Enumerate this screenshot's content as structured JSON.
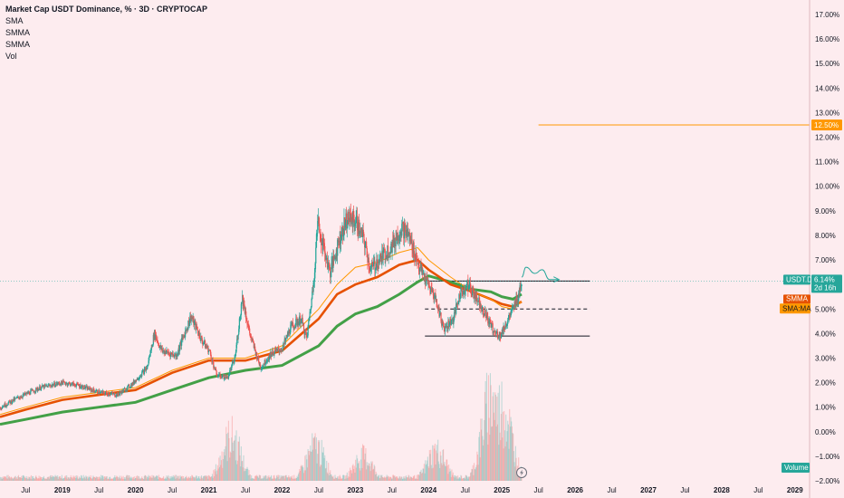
{
  "legend": {
    "title": "Market Cap USDT Dominance, % · 3D · CRYPTOCAP",
    "lines": [
      "SMA",
      "SMMA",
      "SMMA",
      "Vol"
    ]
  },
  "colors": {
    "background": "#fdecef",
    "up": "#26a69a",
    "down": "#ef5350",
    "smma_fast": "#e65100",
    "smma_slow": "#43a047",
    "sma": "#ff9800",
    "level": "#131722",
    "target": "#ff9800",
    "projection": "#26a69a"
  },
  "tags": {
    "target_price": "12.50%",
    "ticker": "USDT.D",
    "ticker_price": "6.14%",
    "ticker_timer": "2d 16h",
    "smma_tag": "SMMA",
    "sma_ma_tag": "SMA:MA",
    "volume_tag": "Volume",
    "lightning_icon": "lightning-icon"
  },
  "chart_data": {
    "type": "candlestick",
    "title": "Market Cap USDT Dominance, % · 3D · CRYPTOCAP",
    "y_axis": {
      "unit": "%",
      "range": [
        -2.0,
        17.0
      ],
      "ticks": [
        "17.00%",
        "16.00%",
        "15.00%",
        "14.00%",
        "13.00%",
        "12.00%",
        "11.00%",
        "10.00%",
        "9.00%",
        "8.00%",
        "7.00%",
        "6.00%",
        "5.00%",
        "4.00%",
        "3.00%",
        "2.00%",
        "1.00%",
        "0.00%",
        "−1.00%",
        "−2.00%"
      ],
      "tick_values": [
        17,
        16,
        15,
        14,
        13,
        12,
        11,
        10,
        9,
        8,
        7,
        6,
        5,
        4,
        3,
        2,
        1,
        0,
        -1,
        -2
      ]
    },
    "x_axis": {
      "range": [
        2018.15,
        2029.2
      ],
      "ticks": [
        "Jul",
        "2019",
        "Jul",
        "2020",
        "Jul",
        "2021",
        "Jul",
        "2022",
        "Jul",
        "2023",
        "Jul",
        "2024",
        "Jul",
        "2025",
        "Jul",
        "2026",
        "Jul",
        "2027",
        "Jul",
        "2028",
        "Jul",
        "2029"
      ],
      "tick_values": [
        2018.5,
        2019.0,
        2019.5,
        2020.0,
        2020.5,
        2021.0,
        2021.5,
        2022.0,
        2022.5,
        2023.0,
        2023.5,
        2024.0,
        2024.5,
        2025.0,
        2025.5,
        2026.0,
        2026.5,
        2027.0,
        2027.5,
        2028.0,
        2028.5,
        2029.0
      ]
    },
    "price_path": [
      [
        2018.15,
        1.0
      ],
      [
        2018.4,
        1.4
      ],
      [
        2018.7,
        1.8
      ],
      [
        2019.0,
        2.0
      ],
      [
        2019.2,
        1.9
      ],
      [
        2019.5,
        1.6
      ],
      [
        2019.75,
        1.5
      ],
      [
        2019.95,
        1.95
      ],
      [
        2020.15,
        2.6
      ],
      [
        2020.25,
        4.0
      ],
      [
        2020.35,
        3.3
      ],
      [
        2020.55,
        3.1
      ],
      [
        2020.75,
        4.7
      ],
      [
        2020.9,
        3.7
      ],
      [
        2021.0,
        3.3
      ],
      [
        2021.1,
        2.3
      ],
      [
        2021.25,
        2.2
      ],
      [
        2021.35,
        3.0
      ],
      [
        2021.45,
        5.5
      ],
      [
        2021.55,
        4.0
      ],
      [
        2021.7,
        2.6
      ],
      [
        2021.85,
        3.2
      ],
      [
        2022.0,
        3.4
      ],
      [
        2022.1,
        4.2
      ],
      [
        2022.25,
        4.6
      ],
      [
        2022.33,
        3.8
      ],
      [
        2022.42,
        6.0
      ],
      [
        2022.48,
        8.6
      ],
      [
        2022.55,
        7.6
      ],
      [
        2022.65,
        6.5
      ],
      [
        2022.78,
        7.9
      ],
      [
        2022.88,
        8.7
      ],
      [
        2023.0,
        8.6
      ],
      [
        2023.12,
        7.7
      ],
      [
        2023.2,
        6.6
      ],
      [
        2023.35,
        7.1
      ],
      [
        2023.5,
        7.6
      ],
      [
        2023.62,
        8.3
      ],
      [
        2023.72,
        8.0
      ],
      [
        2023.8,
        7.3
      ],
      [
        2023.88,
        6.6
      ],
      [
        2024.0,
        5.9
      ],
      [
        2024.08,
        5.5
      ],
      [
        2024.2,
        4.2
      ],
      [
        2024.33,
        4.6
      ],
      [
        2024.42,
        5.6
      ],
      [
        2024.52,
        6.0
      ],
      [
        2024.62,
        5.6
      ],
      [
        2024.7,
        5.2
      ],
      [
        2024.8,
        4.6
      ],
      [
        2024.9,
        4.0
      ],
      [
        2024.98,
        3.95
      ],
      [
        2025.05,
        4.4
      ],
      [
        2025.15,
        5.0
      ],
      [
        2025.22,
        5.6
      ],
      [
        2025.27,
        6.3
      ]
    ],
    "smma_fast": [
      [
        2018.15,
        0.6
      ],
      [
        2018.5,
        0.9
      ],
      [
        2019.0,
        1.3
      ],
      [
        2019.5,
        1.5
      ],
      [
        2020.0,
        1.7
      ],
      [
        2020.5,
        2.4
      ],
      [
        2021.0,
        2.9
      ],
      [
        2021.5,
        2.9
      ],
      [
        2022.0,
        3.3
      ],
      [
        2022.5,
        4.6
      ],
      [
        2022.75,
        5.6
      ],
      [
        2023.0,
        6.0
      ],
      [
        2023.3,
        6.3
      ],
      [
        2023.6,
        6.8
      ],
      [
        2023.85,
        7.0
      ],
      [
        2024.0,
        6.6
      ],
      [
        2024.3,
        6.0
      ],
      [
        2024.6,
        5.7
      ],
      [
        2024.85,
        5.4
      ],
      [
        2025.0,
        5.2
      ],
      [
        2025.15,
        5.1
      ],
      [
        2025.27,
        5.3
      ]
    ],
    "smma_slow": [
      [
        2018.15,
        0.3
      ],
      [
        2018.5,
        0.5
      ],
      [
        2019.0,
        0.8
      ],
      [
        2019.5,
        1.0
      ],
      [
        2020.0,
        1.2
      ],
      [
        2020.5,
        1.7
      ],
      [
        2021.0,
        2.2
      ],
      [
        2021.5,
        2.5
      ],
      [
        2022.0,
        2.7
      ],
      [
        2022.5,
        3.5
      ],
      [
        2022.75,
        4.3
      ],
      [
        2023.0,
        4.8
      ],
      [
        2023.3,
        5.1
      ],
      [
        2023.6,
        5.6
      ],
      [
        2023.85,
        6.1
      ],
      [
        2024.0,
        6.35
      ],
      [
        2024.3,
        6.1
      ],
      [
        2024.6,
        5.8
      ],
      [
        2024.85,
        5.7
      ],
      [
        2025.0,
        5.5
      ],
      [
        2025.15,
        5.4
      ],
      [
        2025.27,
        5.6
      ]
    ],
    "sma": [
      [
        2018.15,
        0.7
      ],
      [
        2018.5,
        1.0
      ],
      [
        2019.0,
        1.4
      ],
      [
        2019.5,
        1.6
      ],
      [
        2020.0,
        1.8
      ],
      [
        2020.5,
        2.5
      ],
      [
        2021.0,
        3.0
      ],
      [
        2021.5,
        3.0
      ],
      [
        2022.0,
        3.5
      ],
      [
        2022.5,
        5.0
      ],
      [
        2022.75,
        6.0
      ],
      [
        2023.0,
        6.7
      ],
      [
        2023.3,
        6.9
      ],
      [
        2023.6,
        7.3
      ],
      [
        2023.85,
        7.5
      ],
      [
        2024.0,
        7.0
      ],
      [
        2024.3,
        6.3
      ],
      [
        2024.6,
        5.7
      ],
      [
        2024.85,
        5.4
      ],
      [
        2025.0,
        5.1
      ],
      [
        2025.15,
        5.0
      ],
      [
        2025.27,
        5.3
      ]
    ],
    "levels": [
      {
        "value": 6.14,
        "x_start": 2024.0,
        "x_end": 2026.2,
        "style": "solid"
      },
      {
        "value": 5.0,
        "x_start": 2023.95,
        "x_end": 2026.2,
        "style": "dashed"
      },
      {
        "value": 3.9,
        "x_start": 2023.95,
        "x_end": 2026.2,
        "style": "solid"
      },
      {
        "value": 12.5,
        "x_start": 2025.5,
        "x_end": 2029.2,
        "style": "solid"
      }
    ],
    "projection": [
      [
        2025.27,
        6.3
      ],
      [
        2025.33,
        6.7
      ],
      [
        2025.45,
        6.45
      ],
      [
        2025.55,
        6.6
      ],
      [
        2025.65,
        6.2
      ],
      [
        2025.78,
        6.2
      ]
    ],
    "volume_peaks": [
      [
        2021.3,
        0.45
      ],
      [
        2022.45,
        0.35
      ],
      [
        2023.1,
        0.25
      ],
      [
        2024.1,
        0.3
      ],
      [
        2024.85,
        0.85
      ],
      [
        2025.0,
        0.75
      ]
    ]
  }
}
